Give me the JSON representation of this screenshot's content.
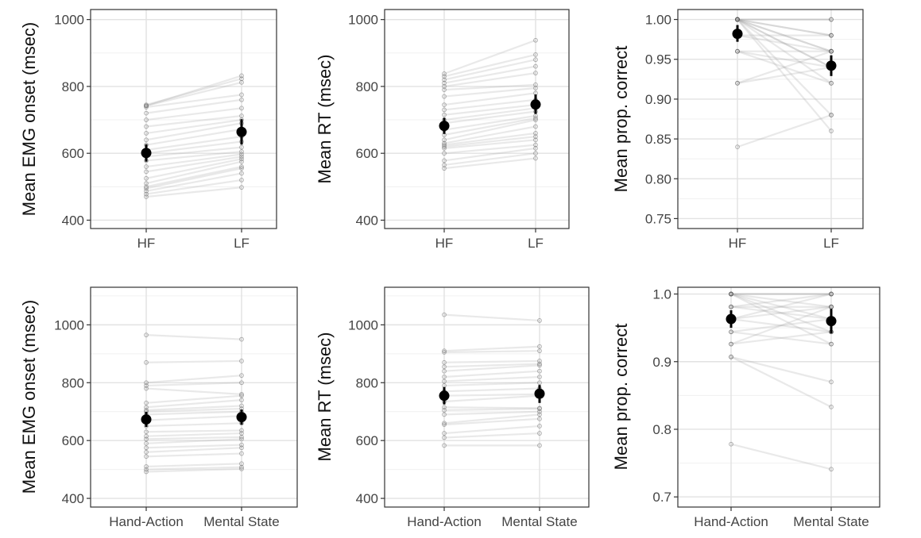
{
  "figure": {
    "panel_border_color": "#333333",
    "grid_major_color": "#e2e2e2",
    "grid_minor_color": "#f0f0f0",
    "subject_line_color": "#9a9a9a",
    "mean_color": "#000000",
    "tick_text_color": "#444444",
    "axis_title_color": "#111111"
  },
  "chart_data": [
    {
      "type": "line",
      "panel": "top-left",
      "ylabel": "Mean EMG onset (msec)",
      "xlabel": "",
      "categories": [
        "HF",
        "LF"
      ],
      "ylim": [
        375,
        1030
      ],
      "yticks": [
        400,
        600,
        800,
        1000
      ],
      "ytick_labels": [
        "400",
        "600",
        "800",
        "1000"
      ],
      "minor_yticks": [
        500,
        700,
        900
      ],
      "subjects": [
        [
          470,
          498
        ],
        [
          478,
          520
        ],
        [
          487,
          540
        ],
        [
          495,
          555
        ],
        [
          500,
          560
        ],
        [
          510,
          575
        ],
        [
          525,
          583
        ],
        [
          545,
          590
        ],
        [
          560,
          597
        ],
        [
          578,
          605
        ],
        [
          590,
          618
        ],
        [
          600,
          635
        ],
        [
          610,
          650
        ],
        [
          625,
          672
        ],
        [
          640,
          690
        ],
        [
          660,
          700
        ],
        [
          680,
          712
        ],
        [
          700,
          735
        ],
        [
          720,
          760
        ],
        [
          738,
          775
        ],
        [
          742,
          812
        ],
        [
          745,
          823
        ],
        [
          742,
          832
        ]
      ],
      "mean": [
        601,
        664
      ],
      "ci": [
        [
          575,
          627
        ],
        [
          626,
          702
        ]
      ]
    },
    {
      "type": "line",
      "panel": "top-middle",
      "ylabel": "Mean RT (msec)",
      "xlabel": "",
      "categories": [
        "HF",
        "LF"
      ],
      "ylim": [
        375,
        1030
      ],
      "yticks": [
        400,
        600,
        800,
        1000
      ],
      "ytick_labels": [
        "400",
        "600",
        "800",
        "1000"
      ],
      "minor_yticks": [
        500,
        700,
        900
      ],
      "subjects": [
        [
          555,
          585
        ],
        [
          565,
          600
        ],
        [
          578,
          615
        ],
        [
          600,
          625
        ],
        [
          615,
          640
        ],
        [
          620,
          650
        ],
        [
          625,
          660
        ],
        [
          630,
          680
        ],
        [
          640,
          700
        ],
        [
          655,
          705
        ],
        [
          670,
          712
        ],
        [
          690,
          725
        ],
        [
          700,
          735
        ],
        [
          715,
          745
        ],
        [
          730,
          760
        ],
        [
          745,
          780
        ],
        [
          770,
          795
        ],
        [
          790,
          805
        ],
        [
          800,
          840
        ],
        [
          810,
          860
        ],
        [
          820,
          880
        ],
        [
          830,
          895
        ],
        [
          838,
          938
        ]
      ],
      "mean": [
        682,
        746
      ],
      "ci": [
        [
          658,
          706
        ],
        [
          718,
          776
        ]
      ]
    },
    {
      "type": "line",
      "panel": "top-right",
      "ylabel": "Mean prop. correct",
      "xlabel": "",
      "categories": [
        "HF",
        "LF"
      ],
      "ylim": [
        0.7375,
        1.0125
      ],
      "yticks": [
        0.75,
        0.8,
        0.85,
        0.9,
        0.95,
        1.0
      ],
      "ytick_labels": [
        "0.75",
        "0.80",
        "0.85",
        "0.90",
        "0.95",
        "1.00"
      ],
      "minor_yticks": [
        0.775,
        0.825,
        0.875,
        0.925,
        0.975
      ],
      "subjects": [
        [
          1.0,
          1.0
        ],
        [
          1.0,
          1.0
        ],
        [
          1.0,
          0.98
        ],
        [
          1.0,
          0.98
        ],
        [
          1.0,
          0.96
        ],
        [
          1.0,
          0.96
        ],
        [
          1.0,
          0.94
        ],
        [
          1.0,
          0.94
        ],
        [
          1.0,
          0.92
        ],
        [
          1.0,
          0.88
        ],
        [
          1.0,
          0.86
        ],
        [
          0.96,
          0.96
        ],
        [
          0.96,
          0.94
        ],
        [
          0.98,
          0.96
        ],
        [
          0.98,
          0.98
        ],
        [
          0.96,
          0.92
        ],
        [
          0.92,
          0.96
        ],
        [
          0.92,
          0.94
        ],
        [
          0.84,
          0.88
        ]
      ],
      "mean": [
        0.982,
        0.942
      ],
      "ci": [
        [
          0.972,
          0.993
        ],
        [
          0.929,
          0.955
        ]
      ]
    },
    {
      "type": "line",
      "panel": "bottom-left",
      "ylabel": "Mean EMG onset (msec)",
      "xlabel": "",
      "categories": [
        "Hand-Action",
        "Mental State"
      ],
      "ylim": [
        370,
        1130
      ],
      "yticks": [
        400,
        600,
        800,
        1000
      ],
      "ytick_labels": [
        "400",
        "600",
        "800",
        "1000"
      ],
      "minor_yticks": [
        500,
        700,
        900,
        1100
      ],
      "subjects": [
        [
          492,
          502
        ],
        [
          500,
          508
        ],
        [
          510,
          520
        ],
        [
          545,
          555
        ],
        [
          560,
          575
        ],
        [
          575,
          585
        ],
        [
          590,
          605
        ],
        [
          605,
          612
        ],
        [
          615,
          625
        ],
        [
          630,
          635
        ],
        [
          650,
          660
        ],
        [
          670,
          685
        ],
        [
          690,
          700
        ],
        [
          700,
          710
        ],
        [
          705,
          720
        ],
        [
          715,
          740
        ],
        [
          730,
          755
        ],
        [
          780,
          760
        ],
        [
          790,
          800
        ],
        [
          800,
          825
        ],
        [
          870,
          875
        ],
        [
          965,
          950
        ]
      ],
      "mean": [
        673,
        681
      ],
      "ci": [
        [
          647,
          699
        ],
        [
          655,
          707
        ]
      ]
    },
    {
      "type": "line",
      "panel": "bottom-middle",
      "ylabel": "Mean RT (msec)",
      "xlabel": "",
      "categories": [
        "Hand-Action",
        "Mental State"
      ],
      "ylim": [
        370,
        1130
      ],
      "yticks": [
        400,
        600,
        800,
        1000
      ],
      "ytick_labels": [
        "400",
        "600",
        "800",
        "1000"
      ],
      "minor_yticks": [
        500,
        700,
        900,
        1100
      ],
      "subjects": [
        [
          583,
          583
        ],
        [
          610,
          625
        ],
        [
          625,
          650
        ],
        [
          655,
          675
        ],
        [
          660,
          690
        ],
        [
          690,
          700
        ],
        [
          705,
          710
        ],
        [
          715,
          712
        ],
        [
          735,
          755
        ],
        [
          755,
          760
        ],
        [
          770,
          780
        ],
        [
          790,
          800
        ],
        [
          805,
          820
        ],
        [
          820,
          840
        ],
        [
          840,
          860
        ],
        [
          855,
          865
        ],
        [
          870,
          875
        ],
        [
          905,
          910
        ],
        [
          910,
          925
        ],
        [
          1035,
          1015
        ]
      ],
      "mean": [
        755,
        762
      ],
      "ci": [
        [
          725,
          785
        ],
        [
          730,
          792
        ]
      ]
    },
    {
      "type": "line",
      "panel": "bottom-right",
      "ylabel": "Mean prop. correct",
      "xlabel": "",
      "categories": [
        "Hand-Action",
        "Mental State"
      ],
      "ylim": [
        0.685,
        1.01
      ],
      "yticks": [
        0.7,
        0.8,
        0.9,
        1.0
      ],
      "ytick_labels": [
        "0.7",
        "0.8",
        "0.9",
        "1.0"
      ],
      "minor_yticks": [
        0.75,
        0.85,
        0.95
      ],
      "subjects": [
        [
          1.0,
          1.0
        ],
        [
          1.0,
          1.0
        ],
        [
          1.0,
          0.981
        ],
        [
          1.0,
          0.963
        ],
        [
          1.0,
          0.944
        ],
        [
          1.0,
          0.926
        ],
        [
          0.981,
          1.0
        ],
        [
          0.981,
          0.981
        ],
        [
          0.981,
          0.963
        ],
        [
          0.963,
          1.0
        ],
        [
          0.963,
          0.981
        ],
        [
          0.963,
          0.944
        ],
        [
          0.944,
          0.963
        ],
        [
          0.944,
          0.926
        ],
        [
          0.926,
          0.981
        ],
        [
          0.926,
          0.944
        ],
        [
          0.907,
          0.87
        ],
        [
          0.907,
          0.833
        ],
        [
          0.778,
          0.741
        ]
      ],
      "mean": [
        0.963,
        0.96
      ],
      "ci": [
        [
          0.95,
          0.976
        ],
        [
          0.942,
          0.978
        ]
      ]
    }
  ]
}
